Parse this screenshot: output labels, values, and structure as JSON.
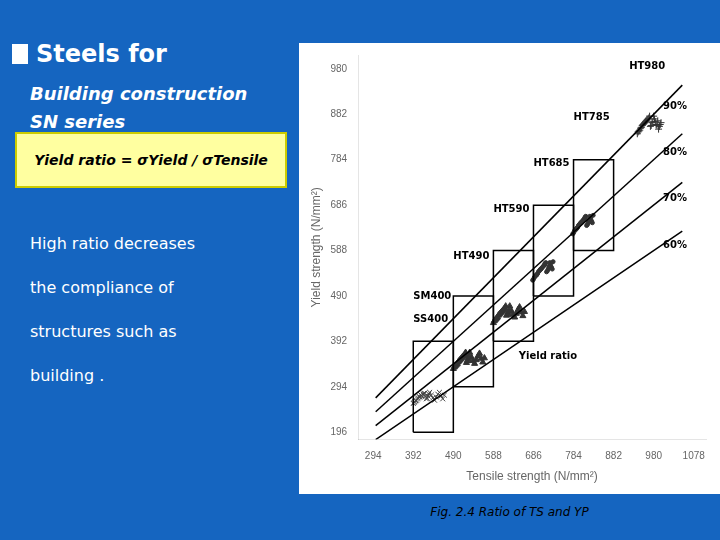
{
  "chart_data": {
    "type": "scatter",
    "title": "Steels for",
    "subtitle": [
      "Building construction",
      "SN series"
    ],
    "formula": "Yield ratio = σYield / σTensile",
    "body": [
      "High ratio decreases",
      "the compliance of",
      "structures such as",
      "building ."
    ],
    "caption": "Fig. 2.4 Ratio of TS and YP",
    "x_label": "Tensile strength (N/mm²)",
    "y_label": "Yield strength (N/mm²)",
    "xlim": [
      257,
      1108
    ],
    "xticks": [
      294,
      392,
      490,
      588,
      686,
      784,
      882,
      980,
      1078
    ],
    "ylim": [
      180,
      1010
    ],
    "yticks": [
      196,
      294,
      392,
      490,
      588,
      686,
      784,
      882,
      980
    ],
    "grid": false,
    "series": [
      {
        "type": "line",
        "color": "#000000",
        "x": [
          300,
          1050
        ],
        "values": [
          180,
          630
        ]
      },
      {
        "type": "line",
        "color": "#000000",
        "x": [
          300,
          1050
        ],
        "values": [
          210,
          735
        ]
      },
      {
        "type": "line",
        "color": "#000000",
        "x": [
          300,
          1050
        ],
        "values": [
          240,
          840
        ]
      },
      {
        "type": "line",
        "color": "#000000",
        "x": [
          300,
          1050
        ],
        "values": [
          270,
          945
        ]
      },
      {
        "type": "line",
        "color": "#000000",
        "x": [
          392,
          490,
          490,
          392,
          392
        ],
        "values": [
          196,
          196,
          392,
          392,
          196
        ]
      },
      {
        "type": "line",
        "color": "#000000",
        "x": [
          490,
          588,
          588,
          490,
          490
        ],
        "values": [
          294,
          294,
          490,
          490,
          294
        ]
      },
      {
        "type": "line",
        "color": "#000000",
        "x": [
          588,
          686,
          686,
          588,
          588
        ],
        "values": [
          392,
          392,
          588,
          588,
          392
        ]
      },
      {
        "type": "line",
        "color": "#000000",
        "x": [
          686,
          784,
          784,
          686,
          686
        ],
        "values": [
          490,
          490,
          686,
          686,
          490
        ]
      },
      {
        "type": "line",
        "color": "#000000",
        "x": [
          784,
          882,
          882,
          784,
          784
        ],
        "values": [
          588,
          588,
          784,
          784,
          588
        ]
      },
      {
        "type": "scatter",
        "marker": "x",
        "color": "#444444",
        "x": [
          392,
          396,
          400,
          404,
          408,
          412,
          416,
          420,
          424,
          428,
          432,
          436,
          440,
          444,
          448,
          452,
          456,
          460,
          464,
          468,
          394,
          398,
          402,
          406,
          410,
          414,
          418,
          422,
          426,
          430
        ],
        "values": [
          258,
          262,
          265,
          270,
          272,
          275,
          278,
          280,
          268,
          274,
          282,
          276,
          270,
          265,
          272,
          278,
          282,
          274,
          268,
          276,
          260,
          264,
          268,
          273,
          277,
          272,
          280,
          274,
          269,
          278
        ]
      },
      {
        "type": "scatter",
        "marker": "triangle",
        "color": "#333333",
        "x": [
          490,
          494,
          498,
          502,
          506,
          510,
          514,
          518,
          522,
          526,
          530,
          534,
          538,
          542,
          546,
          550,
          554,
          558,
          562,
          566,
          492,
          496,
          500,
          504,
          508,
          512,
          516,
          520,
          524,
          528
        ],
        "values": [
          333,
          338,
          342,
          348,
          352,
          356,
          360,
          364,
          346,
          354,
          368,
          358,
          350,
          344,
          352,
          360,
          366,
          355,
          347,
          356,
          336,
          340,
          344,
          350,
          354,
          358,
          362,
          368,
          350,
          358
        ]
      },
      {
        "type": "scatter",
        "marker": "triangle",
        "color": "#333333",
        "x": [
          588,
          592,
          596,
          600,
          604,
          608,
          612,
          616,
          620,
          624,
          628,
          632,
          636,
          640,
          644,
          648,
          652,
          656,
          660,
          664,
          590,
          594,
          598,
          602,
          606,
          610,
          614,
          618,
          622,
          626
        ],
        "values": [
          432,
          438,
          442,
          448,
          452,
          456,
          460,
          464,
          448,
          454,
          468,
          458,
          450,
          444,
          452,
          460,
          466,
          455,
          447,
          456,
          436,
          440,
          444,
          450,
          454,
          458,
          462,
          468,
          450,
          458
        ]
      },
      {
        "type": "scatter",
        "marker": "point",
        "color": "#333333",
        "x": [
          686,
          690,
          694,
          698,
          702,
          706,
          710,
          714,
          718,
          722,
          726,
          730,
          688,
          692,
          696,
          700,
          704,
          708,
          712,
          716,
          720,
          724,
          728,
          732,
          684,
          694,
          704,
          714,
          724,
          734
        ],
        "values": [
          526,
          532,
          536,
          542,
          546,
          550,
          554,
          558,
          542,
          548,
          562,
          552,
          530,
          534,
          538,
          544,
          548,
          552,
          556,
          562,
          544,
          550,
          558,
          548,
          524,
          536,
          548,
          560,
          554,
          564
        ]
      },
      {
        "type": "scatter",
        "marker": "point",
        "color": "#333333",
        "x": [
          784,
          788,
          792,
          796,
          800,
          804,
          808,
          812,
          816,
          820,
          824,
          828,
          786,
          790,
          794,
          798,
          802,
          806,
          810,
          814,
          818,
          822,
          826,
          830,
          782,
          792,
          802,
          812,
          822,
          832
        ],
        "values": [
          626,
          632,
          636,
          642,
          646,
          650,
          654,
          658,
          642,
          648,
          662,
          652,
          630,
          634,
          638,
          644,
          648,
          652,
          656,
          662,
          644,
          650,
          658,
          648,
          624,
          636,
          648,
          660,
          654,
          664
        ]
      },
      {
        "type": "scatter",
        "marker": "plus",
        "color": "#333333",
        "x": [
          940,
          944,
          948,
          952,
          956,
          960,
          964,
          968,
          972,
          976,
          980,
          984,
          988,
          992,
          996,
          942,
          946,
          950,
          954,
          958,
          962,
          966,
          970,
          974,
          978,
          982,
          986,
          990,
          994,
          998
        ],
        "values": [
          840,
          846,
          852,
          858,
          862,
          866,
          870,
          874,
          856,
          864,
          878,
          866,
          858,
          850,
          860,
          844,
          848,
          854,
          860,
          864,
          868,
          872,
          878,
          858,
          866,
          872,
          860,
          868,
          856,
          864
        ]
      }
    ],
    "annotations": [
      {
        "text": "60%",
        "x": 1003,
        "y": 600
      },
      {
        "text": "70%",
        "x": 1003,
        "y": 700
      },
      {
        "text": "80%",
        "x": 1003,
        "y": 800
      },
      {
        "text": "90%",
        "x": 1003,
        "y": 900
      },
      {
        "text": "SM400",
        "x": 392,
        "y": 490
      },
      {
        "text": "SS400",
        "x": 392,
        "y": 440
      },
      {
        "text": "HT490",
        "x": 490,
        "y": 575
      },
      {
        "text": "HT590",
        "x": 588,
        "y": 676
      },
      {
        "text": "HT685",
        "x": 686,
        "y": 775
      },
      {
        "text": "HT785",
        "x": 784,
        "y": 875
      },
      {
        "text": "HT980",
        "x": 920,
        "y": 985
      },
      {
        "text": "Yield ratio",
        "x": 650,
        "y": 360
      }
    ]
  }
}
